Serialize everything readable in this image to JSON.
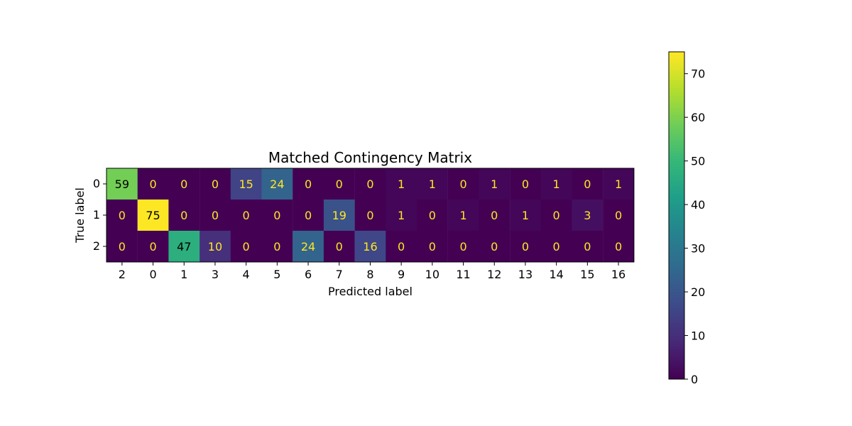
{
  "chart_data": {
    "type": "heatmap",
    "title": "Matched Contingency Matrix",
    "xlabel": "Predicted label",
    "ylabel": "True label",
    "x_labels": [
      "2",
      "0",
      "1",
      "3",
      "4",
      "5",
      "6",
      "7",
      "8",
      "9",
      "10",
      "11",
      "12",
      "13",
      "14",
      "15",
      "16"
    ],
    "y_labels": [
      "0",
      "1",
      "2"
    ],
    "values": [
      [
        59,
        0,
        0,
        0,
        15,
        24,
        0,
        0,
        0,
        1,
        1,
        0,
        1,
        0,
        1,
        0,
        1
      ],
      [
        0,
        75,
        0,
        0,
        0,
        0,
        0,
        19,
        0,
        1,
        0,
        1,
        0,
        1,
        0,
        3,
        0
      ],
      [
        0,
        0,
        47,
        10,
        0,
        0,
        24,
        0,
        16,
        0,
        0,
        0,
        0,
        0,
        0,
        0,
        0
      ]
    ],
    "colormap": "viridis",
    "colorbar": {
      "min": 0,
      "max": 75,
      "ticks": [
        0,
        10,
        20,
        30,
        40,
        50,
        60,
        70
      ]
    }
  }
}
